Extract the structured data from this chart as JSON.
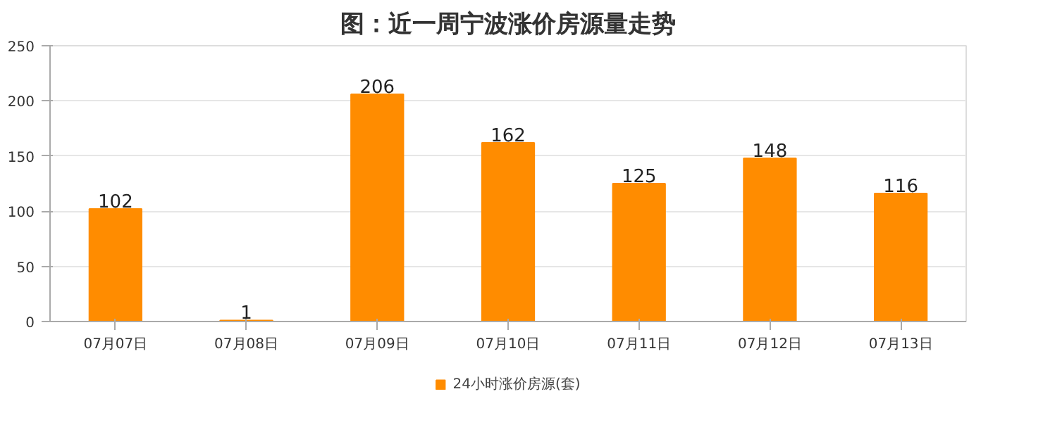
{
  "chart_data": {
    "type": "bar",
    "title": "图：近一周宁波涨价房源量走势",
    "categories": [
      "07月07日",
      "07月08日",
      "07月09日",
      "07月10日",
      "07月11日",
      "07月12日",
      "07月13日"
    ],
    "series": [
      {
        "name": "24小时涨价房源(套)",
        "color": "#ff8c00",
        "values": [
          102,
          1,
          206,
          162,
          125,
          148,
          116
        ]
      }
    ],
    "ylim": [
      0,
      250
    ],
    "yticks": [
      0,
      50,
      100,
      150,
      200,
      250
    ],
    "grid": "y",
    "legend": "bottom",
    "data_labels": true
  }
}
